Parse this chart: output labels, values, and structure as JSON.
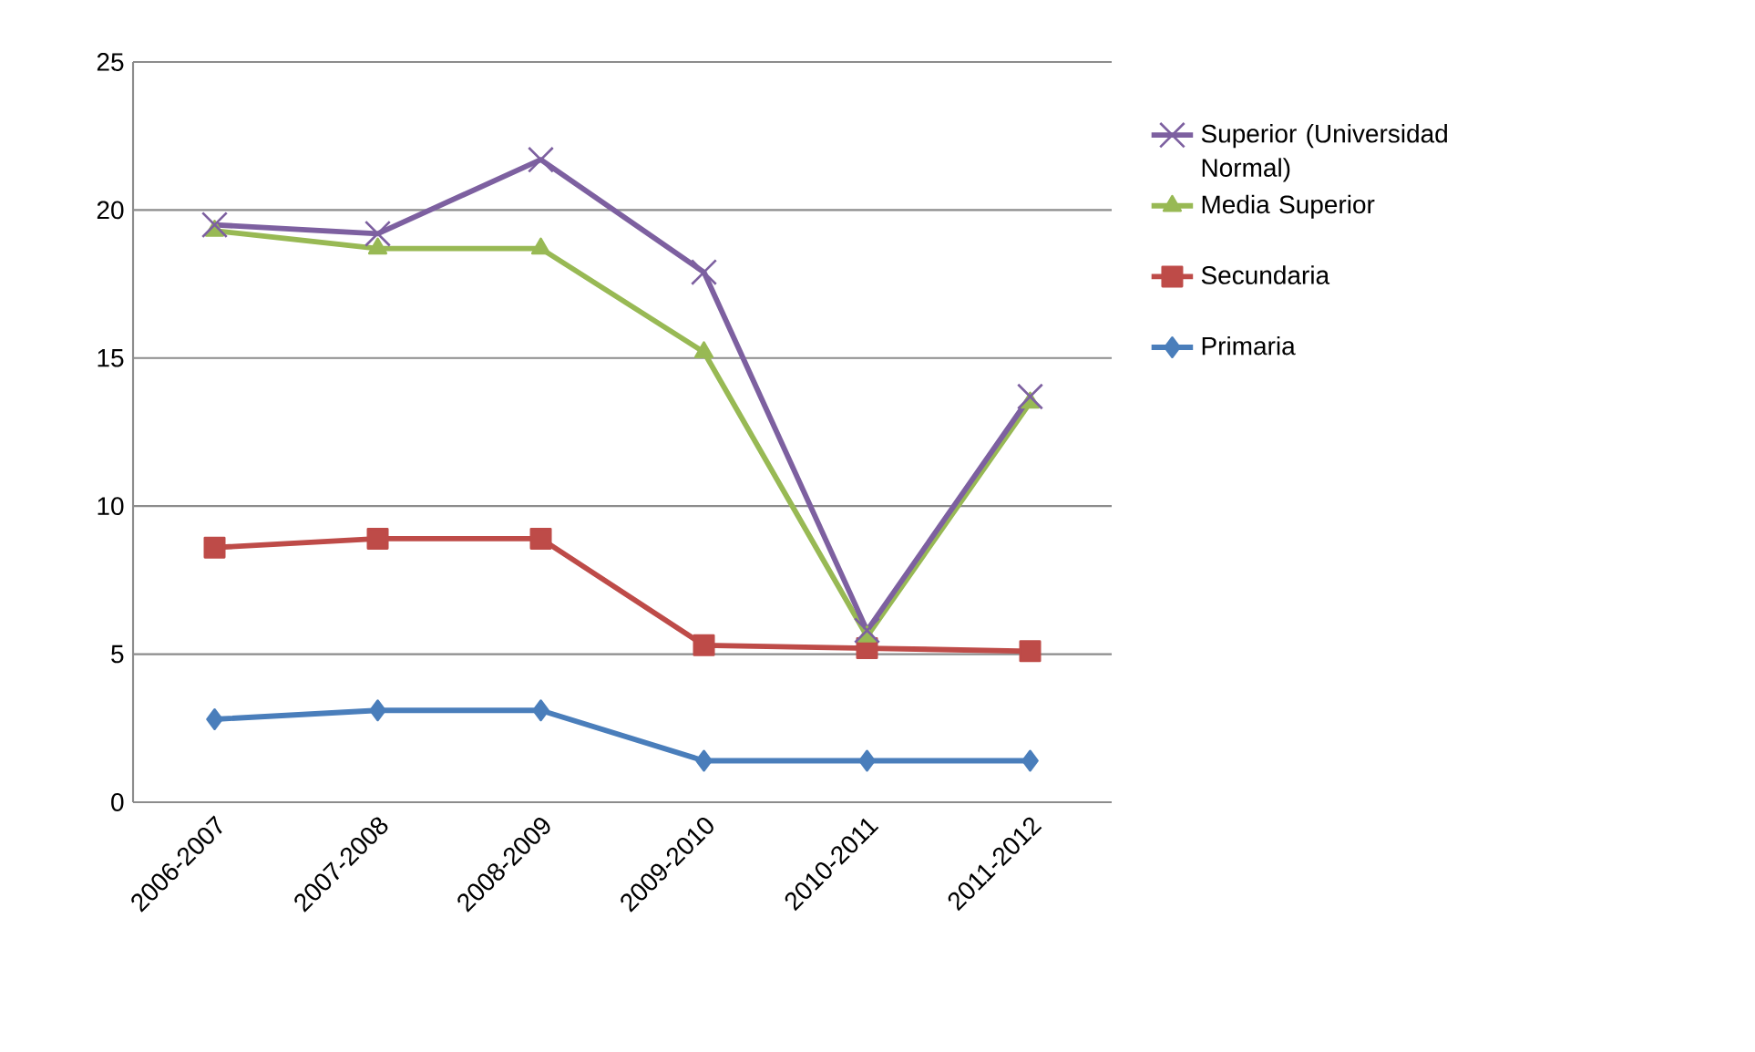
{
  "chart_data": {
    "type": "line",
    "categories": [
      "2006-2007",
      "2007-2008",
      "2008-2009",
      "2009-2010",
      "2010-2011",
      "2011-2012"
    ],
    "series": [
      {
        "name": "Primaria",
        "color": "#4a7ebb",
        "marker": "diamond",
        "values": [
          2.8,
          3.1,
          3.1,
          1.4,
          1.4,
          1.4
        ]
      },
      {
        "name": "Secundaria",
        "color": "#be4b48",
        "marker": "square",
        "values": [
          8.6,
          8.9,
          8.9,
          5.3,
          5.2,
          5.1
        ]
      },
      {
        "name": "Media Superior",
        "color": "#98b954",
        "marker": "triangle",
        "values": [
          19.3,
          18.7,
          18.7,
          15.2,
          5.6,
          13.5
        ]
      },
      {
        "name": "Superior (Universidad Normal)",
        "color": "#7d60a0",
        "marker": "cross",
        "values": [
          19.5,
          19.2,
          21.7,
          17.9,
          5.8,
          13.7
        ]
      }
    ],
    "ylim": [
      0,
      25
    ],
    "yticks": [
      0,
      5,
      10,
      15,
      20,
      25
    ],
    "grid": "y",
    "legend": "right",
    "line_style": "solid"
  }
}
